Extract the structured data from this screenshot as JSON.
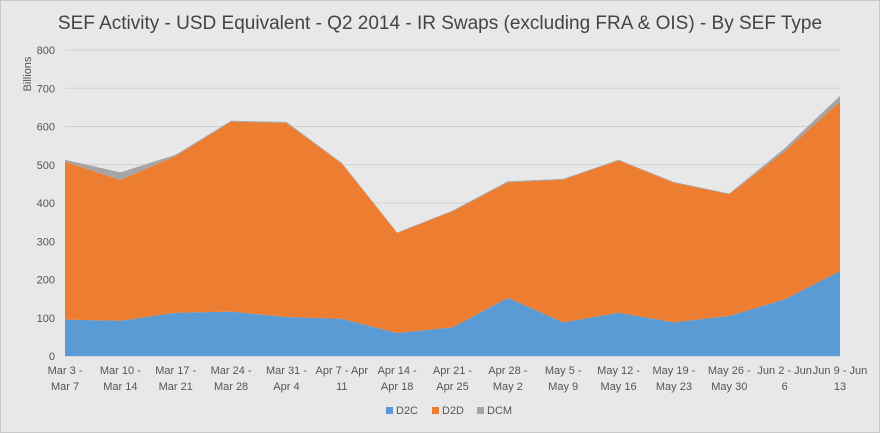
{
  "chart_data": {
    "type": "area",
    "stacked": true,
    "title": "SEF Activity - USD Equivalent - Q2 2014 - IR Swaps (excluding FRA & OIS) - By SEF Type",
    "ylabel": "Billions",
    "xlabel": "",
    "ylim": [
      0,
      800
    ],
    "yticks": [
      0,
      100,
      200,
      300,
      400,
      500,
      600,
      700,
      800
    ],
    "grid": true,
    "legend_position": "bottom",
    "categories": [
      [
        "Mar 3 -",
        "Mar 7"
      ],
      [
        "Mar 10 -",
        "Mar 14"
      ],
      [
        "Mar 17 -",
        "Mar 21"
      ],
      [
        "Mar 24 -",
        "Mar 28"
      ],
      [
        "Mar 31 -",
        "Apr 4"
      ],
      [
        "Apr 7 - Apr",
        "11"
      ],
      [
        "Apr 14 -",
        "Apr 18"
      ],
      [
        "Apr 21 -",
        "Apr 25"
      ],
      [
        "Apr 28 -",
        "May 2"
      ],
      [
        "May 5 -",
        "May 9"
      ],
      [
        "May 12 -",
        "May 16"
      ],
      [
        "May 19 -",
        "May 23"
      ],
      [
        "May 26 -",
        "May 30"
      ],
      [
        "Jun 2 - Jun",
        "6"
      ],
      [
        "Jun 9 - Jun",
        "13"
      ]
    ],
    "series": [
      {
        "name": "D2C",
        "color": "#5b9bd5",
        "values": [
          95,
          92,
          113,
          116,
          102,
          97,
          60,
          75,
          152,
          88,
          113,
          88,
          105,
          148,
          222
        ]
      },
      {
        "name": "D2D",
        "color": "#ed7d31",
        "values": [
          413,
          368,
          410,
          497,
          507,
          406,
          262,
          303,
          302,
          373,
          398,
          365,
          318,
          387,
          443
        ]
      },
      {
        "name": "DCM",
        "color": "#a5a5a5",
        "values": [
          5,
          20,
          3,
          2,
          3,
          2,
          1,
          2,
          3,
          2,
          2,
          2,
          2,
          8,
          15
        ]
      }
    ]
  }
}
